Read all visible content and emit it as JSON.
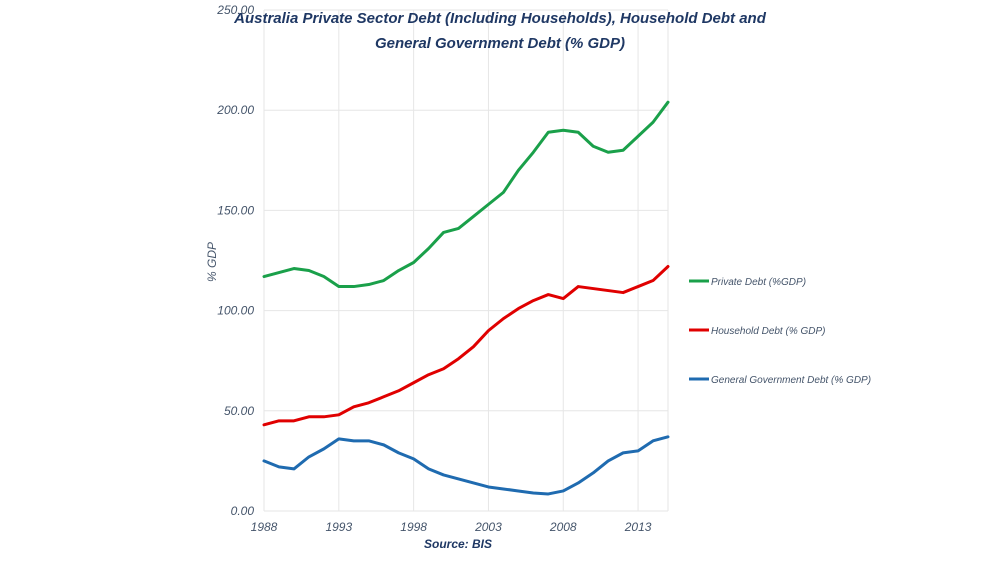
{
  "chart_data": {
    "type": "line",
    "title": "Australia Private Sector Debt (Including Households), Household Debt and",
    "title_line2": "General Government Debt  (% GDP)",
    "xlabel": "Source: BIS",
    "ylabel": "% GDP",
    "ylim": [
      0,
      250
    ],
    "xlim": [
      1988,
      2015
    ],
    "yticks": [
      "0.00",
      "50.00",
      "100.00",
      "150.00",
      "200.00",
      "250.00"
    ],
    "ytick_values": [
      0,
      50,
      100,
      150,
      200,
      250
    ],
    "xticks": [
      "1988",
      "1993",
      "1998",
      "2003",
      "2008",
      "2013"
    ],
    "xtick_values": [
      1988,
      1993,
      1998,
      2003,
      2008,
      2013
    ],
    "grid": true,
    "legend_position": "right",
    "x": [
      1988,
      1989,
      1990,
      1991,
      1992,
      1993,
      1994,
      1995,
      1996,
      1997,
      1998,
      1999,
      2000,
      2001,
      2002,
      2003,
      2004,
      2005,
      2006,
      2007,
      2008,
      2009,
      2010,
      2011,
      2012,
      2013,
      2014,
      2015
    ],
    "series": [
      {
        "name": "Private Debt (%GDP)",
        "color": "#1aa04a",
        "values": [
          117,
          119,
          121,
          120,
          117,
          112,
          112,
          113,
          115,
          120,
          124,
          131,
          139,
          141,
          147,
          153,
          159,
          170,
          179,
          189,
          190,
          189,
          182,
          179,
          180,
          187,
          194,
          204
        ]
      },
      {
        "name": "Household Debt (% GDP)",
        "color": "#e00000",
        "values": [
          43,
          45,
          45,
          47,
          47,
          48,
          52,
          54,
          57,
          60,
          64,
          68,
          71,
          76,
          82,
          90,
          96,
          101,
          105,
          108,
          106,
          112,
          111,
          110,
          109,
          112,
          115,
          122
        ]
      },
      {
        "name": "General Government Debt (% GDP)",
        "color": "#1f6bb0",
        "values": [
          25,
          22,
          21,
          27,
          31,
          36,
          35,
          35,
          33,
          29,
          26,
          21,
          18,
          16,
          14,
          12,
          11,
          10,
          9,
          8.5,
          10,
          14,
          19,
          25,
          29,
          30,
          35,
          37
        ]
      }
    ]
  }
}
